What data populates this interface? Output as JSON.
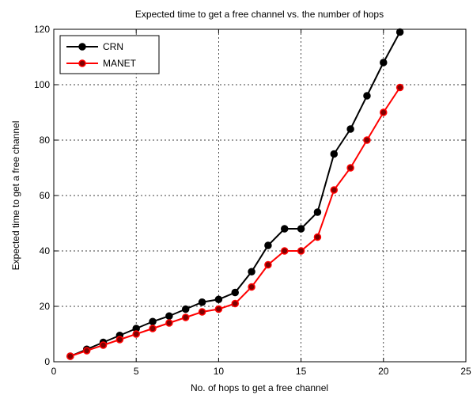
{
  "chart_data": {
    "type": "line",
    "title": "Expected time to get a free channel vs. the number of hops",
    "x_label": "No. of hops to get a free channel",
    "y_label": "Expected time to get a free channel",
    "x": [
      1,
      2,
      3,
      4,
      5,
      6,
      7,
      8,
      9,
      10,
      11,
      12,
      13,
      14,
      15,
      16,
      17,
      18,
      19,
      20,
      21
    ],
    "series": [
      {
        "name": "CRN",
        "color": "#000000",
        "values": [
          2,
          4.5,
          7,
          9.5,
          12,
          14.5,
          16.5,
          19,
          21.5,
          22.5,
          25,
          32.5,
          42,
          48,
          48,
          54,
          75,
          84,
          96,
          108,
          119
        ]
      },
      {
        "name": "MANET",
        "color": "#ff0000",
        "values": [
          2,
          4,
          6,
          8,
          10,
          12,
          14,
          16,
          18,
          19,
          21,
          27,
          35,
          40,
          40,
          45,
          62,
          70,
          80,
          90,
          99
        ]
      }
    ],
    "xlim": [
      0,
      25
    ],
    "xticks": [
      0,
      5,
      10,
      15,
      20,
      25
    ],
    "ylim": [
      0,
      120
    ],
    "yticks": [
      0,
      20,
      40,
      60,
      80,
      100,
      120
    ],
    "grid": true,
    "legend": "upper left"
  }
}
